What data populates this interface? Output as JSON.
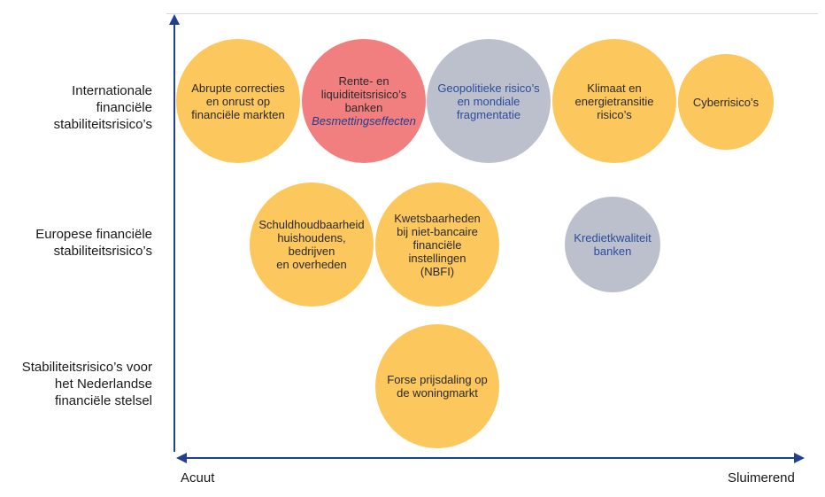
{
  "rows": [
    {
      "label_lines": [
        "Internationale",
        "financiële",
        "stabiliteitsrisico’s"
      ]
    },
    {
      "label_lines": [
        "Europese financiële",
        "stabiliteitsrisico’s"
      ]
    },
    {
      "label_lines": [
        "Stabiliteitsrisico’s voor",
        "het Nederlandse",
        "financiële stelsel"
      ]
    }
  ],
  "x_axis": {
    "left_label": "Acuut",
    "right_label": "Sluimerend"
  },
  "colors": {
    "axis": "#233f8f",
    "yellow": "#fcc75c",
    "red": "#f27f80",
    "grey": "#bbc0cc",
    "grey_text": "#2d4b9e"
  },
  "risks": [
    {
      "lines": [
        "Abrupte correcties",
        "en onrust op",
        "financiële markten"
      ],
      "row": "internationaal",
      "color": "yellow"
    },
    {
      "lines": [
        "Rente- en",
        "liquiditeitsrisico’s",
        "banken"
      ],
      "emphasis": "Besmettingseffecten",
      "row": "internationaal",
      "color": "red"
    },
    {
      "lines": [
        "Geopolitieke risico’s",
        "en mondiale",
        "fragmentatie"
      ],
      "row": "internationaal",
      "color": "grey"
    },
    {
      "lines": [
        "Klimaat en",
        "energietransitie",
        "risico’s"
      ],
      "row": "internationaal",
      "color": "yellow"
    },
    {
      "lines": [
        "Cyberrisico’s"
      ],
      "row": "internationaal",
      "color": "yellow"
    },
    {
      "lines": [
        "Schuldhoudbaarheid",
        "huishoudens, bedrijven",
        "en overheden"
      ],
      "row": "europees",
      "color": "yellow"
    },
    {
      "lines": [
        "Kwetsbaarheden",
        "bij niet-bancaire",
        "financiële",
        "instellingen",
        "(NBFI)"
      ],
      "row": "europees",
      "color": "yellow"
    },
    {
      "lines": [
        "Kredietkwaliteit",
        "banken"
      ],
      "row": "europees",
      "color": "grey"
    },
    {
      "lines": [
        "Forse prijsdaling op",
        "de woningmarkt"
      ],
      "row": "nederland",
      "color": "yellow"
    }
  ]
}
